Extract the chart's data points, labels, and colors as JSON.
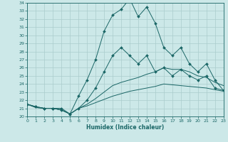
{
  "xlabel": "Humidex (Indice chaleur)",
  "bg_color": "#cce8e8",
  "grid_color": "#aacccc",
  "line_color": "#1a6666",
  "xmin": 0,
  "xmax": 23,
  "ymin": 20,
  "ymax": 34,
  "x_ticks": [
    0,
    1,
    2,
    3,
    4,
    5,
    6,
    7,
    8,
    9,
    10,
    11,
    12,
    13,
    14,
    15,
    16,
    17,
    18,
    19,
    20,
    21,
    22,
    23
  ],
  "y_ticks": [
    20,
    21,
    22,
    23,
    24,
    25,
    26,
    27,
    28,
    29,
    30,
    31,
    32,
    33,
    34
  ],
  "line1_x": [
    0,
    1,
    2,
    3,
    4,
    5,
    6,
    7,
    8,
    9,
    10,
    11,
    12,
    13,
    14,
    15,
    16,
    17,
    18,
    19,
    20,
    21,
    22,
    23
  ],
  "line1_y": [
    21.5,
    21.2,
    21.0,
    21.0,
    21.0,
    20.3,
    22.5,
    24.5,
    27.0,
    30.5,
    32.5,
    33.2,
    34.5,
    32.3,
    33.5,
    31.5,
    28.5,
    27.5,
    28.5,
    26.5,
    25.5,
    26.5,
    24.5,
    23.2
  ],
  "line2_x": [
    0,
    1,
    2,
    3,
    4,
    5,
    6,
    7,
    8,
    9,
    10,
    11,
    12,
    13,
    14,
    15,
    16,
    17,
    18,
    19,
    20,
    21,
    22,
    23
  ],
  "line2_y": [
    21.5,
    21.2,
    21.0,
    21.0,
    20.8,
    20.3,
    21.0,
    22.0,
    23.5,
    25.5,
    27.5,
    28.5,
    27.5,
    26.5,
    27.5,
    25.5,
    26.0,
    25.0,
    25.8,
    25.0,
    24.5,
    25.0,
    23.5,
    23.2
  ],
  "line3_x": [
    0,
    1,
    2,
    3,
    4,
    5,
    6,
    7,
    8,
    9,
    10,
    11,
    12,
    13,
    14,
    15,
    16,
    17,
    18,
    19,
    20,
    21,
    22,
    23
  ],
  "line3_y": [
    21.5,
    21.1,
    21.0,
    21.0,
    20.8,
    20.3,
    21.0,
    21.5,
    22.2,
    23.0,
    23.8,
    24.2,
    24.5,
    24.8,
    25.2,
    25.5,
    26.0,
    25.8,
    25.8,
    25.5,
    25.0,
    24.8,
    24.2,
    23.8
  ],
  "line4_x": [
    0,
    1,
    2,
    3,
    4,
    5,
    6,
    7,
    8,
    9,
    10,
    11,
    12,
    13,
    14,
    15,
    16,
    17,
    18,
    19,
    20,
    21,
    22,
    23
  ],
  "line4_y": [
    21.5,
    21.1,
    21.0,
    21.0,
    20.8,
    20.3,
    21.0,
    21.3,
    21.7,
    22.1,
    22.5,
    22.8,
    23.1,
    23.3,
    23.5,
    23.7,
    24.0,
    23.9,
    23.8,
    23.7,
    23.6,
    23.5,
    23.3,
    23.1
  ],
  "line1_marker": true,
  "line2_marker": true,
  "line3_marker": false,
  "line4_marker": false
}
